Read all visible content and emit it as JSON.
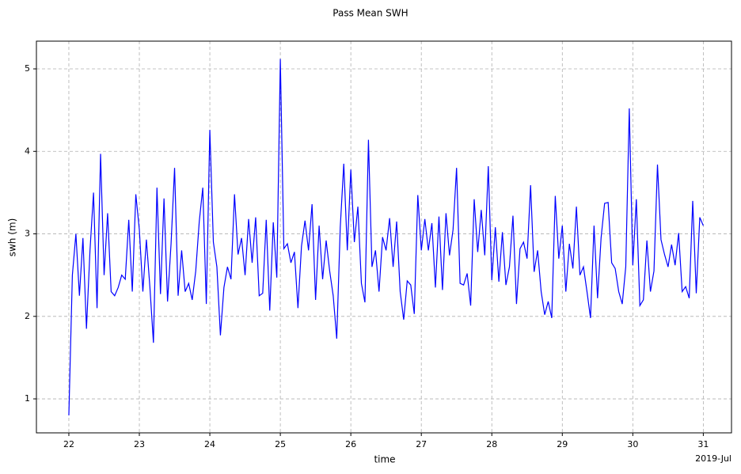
{
  "chart_data": {
    "type": "line",
    "title": "Pass Mean SWH",
    "xlabel": "time",
    "ylabel": "swh (m)",
    "x_offset_label": "2019-Jul",
    "xlim": [
      21.54,
      31.4
    ],
    "xticks": [
      22,
      23,
      24,
      25,
      26,
      27,
      28,
      29,
      30,
      31
    ],
    "ylim": [
      0.588,
      5.336
    ],
    "yticks": [
      1,
      2,
      3,
      4,
      5
    ],
    "grid": true,
    "x": [
      22,
      22.05,
      22.1,
      22.15,
      22.2,
      22.25,
      22.3,
      22.35,
      22.4,
      22.45,
      22.5,
      22.55,
      22.6,
      22.65,
      22.7,
      22.75,
      22.8,
      22.85,
      22.9,
      22.95,
      23,
      23.05,
      23.1,
      23.15,
      23.2,
      23.25,
      23.3,
      23.35,
      23.4,
      23.45,
      23.5,
      23.55,
      23.6,
      23.65,
      23.7,
      23.75,
      23.8,
      23.85,
      23.9,
      23.95,
      24,
      24.05,
      24.1,
      24.15,
      24.2,
      24.25,
      24.3,
      24.35,
      24.4,
      24.45,
      24.5,
      24.55,
      24.6,
      24.65,
      24.7,
      24.75,
      24.8,
      24.85,
      24.9,
      24.95,
      25,
      25.05,
      25.1,
      25.15,
      25.2,
      25.25,
      25.3,
      25.35,
      25.4,
      25.45,
      25.5,
      25.55,
      25.6,
      25.65,
      25.7,
      25.75,
      25.8,
      25.85,
      25.9,
      25.95,
      26,
      26.05,
      26.1,
      26.15,
      26.2,
      26.25,
      26.3,
      26.35,
      26.4,
      26.45,
      26.5,
      26.55,
      26.6,
      26.65,
      26.7,
      26.75,
      26.8,
      26.85,
      26.9,
      26.95,
      27,
      27.05,
      27.1,
      27.15,
      27.2,
      27.25,
      27.3,
      27.35,
      27.4,
      27.45,
      27.5,
      27.55,
      27.6,
      27.65,
      27.7,
      27.75,
      27.8,
      27.85,
      27.9,
      27.95,
      28,
      28.05,
      28.1,
      28.15,
      28.2,
      28.25,
      28.3,
      28.35,
      28.4,
      28.45,
      28.5,
      28.55,
      28.6,
      28.65,
      28.7,
      28.75,
      28.8,
      28.85,
      28.9,
      28.95,
      29,
      29.05,
      29.1,
      29.15,
      29.2,
      29.25,
      29.3,
      29.35,
      29.4,
      29.45,
      29.5,
      29.55,
      29.6,
      29.65,
      29.7,
      29.75,
      29.8,
      29.85,
      29.9,
      29.95,
      30,
      30.05,
      30.1,
      30.15,
      30.2,
      30.25,
      30.3,
      30.35,
      30.4,
      30.45,
      30.5,
      30.55,
      30.6,
      30.65,
      30.7,
      30.75,
      30.8,
      30.85,
      30.9,
      30.95,
      31
    ],
    "series": [
      {
        "name": "swh",
        "color": "#0000ff",
        "values": [
          0.8,
          2.5,
          3.0,
          2.25,
          2.95,
          1.85,
          2.8,
          3.5,
          2.1,
          3.97,
          2.5,
          3.25,
          2.3,
          2.25,
          2.35,
          2.5,
          2.45,
          3.17,
          2.3,
          3.48,
          3.05,
          2.3,
          2.93,
          2.35,
          1.68,
          3.56,
          2.27,
          3.43,
          2.18,
          2.88,
          3.8,
          2.25,
          2.8,
          2.3,
          2.4,
          2.2,
          2.55,
          3.15,
          3.56,
          2.15,
          4.26,
          2.9,
          2.6,
          1.77,
          2.35,
          2.6,
          2.45,
          3.48,
          2.75,
          2.95,
          2.5,
          3.18,
          2.65,
          3.2,
          2.25,
          2.28,
          3.17,
          2.07,
          3.14,
          2.47,
          5.12,
          2.82,
          2.88,
          2.65,
          2.78,
          2.1,
          2.85,
          3.16,
          2.8,
          3.36,
          2.2,
          3.1,
          2.45,
          2.92,
          2.55,
          2.25,
          1.73,
          3.08,
          3.85,
          2.8,
          3.78,
          2.9,
          3.33,
          2.4,
          2.17,
          4.14,
          2.6,
          2.8,
          2.3,
          2.96,
          2.8,
          3.19,
          2.6,
          3.15,
          2.3,
          1.96,
          2.43,
          2.38,
          2.03,
          3.47,
          2.8,
          3.18,
          2.8,
          3.13,
          2.35,
          3.21,
          2.32,
          3.25,
          2.74,
          3.05,
          3.8,
          2.4,
          2.38,
          2.52,
          2.13,
          3.42,
          2.78,
          3.29,
          2.74,
          3.82,
          2.44,
          3.08,
          2.42,
          3.02,
          2.38,
          2.6,
          3.22,
          2.15,
          2.82,
          2.9,
          2.7,
          3.59,
          2.54,
          2.8,
          2.3,
          2.02,
          2.18,
          1.98,
          3.46,
          2.7,
          3.1,
          2.3,
          2.88,
          2.58,
          3.33,
          2.5,
          2.6,
          2.3,
          1.98,
          3.1,
          2.22,
          2.95,
          3.37,
          3.38,
          2.65,
          2.58,
          2.3,
          2.15,
          2.6,
          4.52,
          2.62,
          3.42,
          2.13,
          2.2,
          2.92,
          2.3,
          2.55,
          3.84,
          2.93,
          2.75,
          2.6,
          2.87,
          2.62,
          3.01,
          2.3,
          2.36,
          2.22,
          3.4,
          2.28,
          3.2,
          3.1
        ]
      }
    ]
  }
}
